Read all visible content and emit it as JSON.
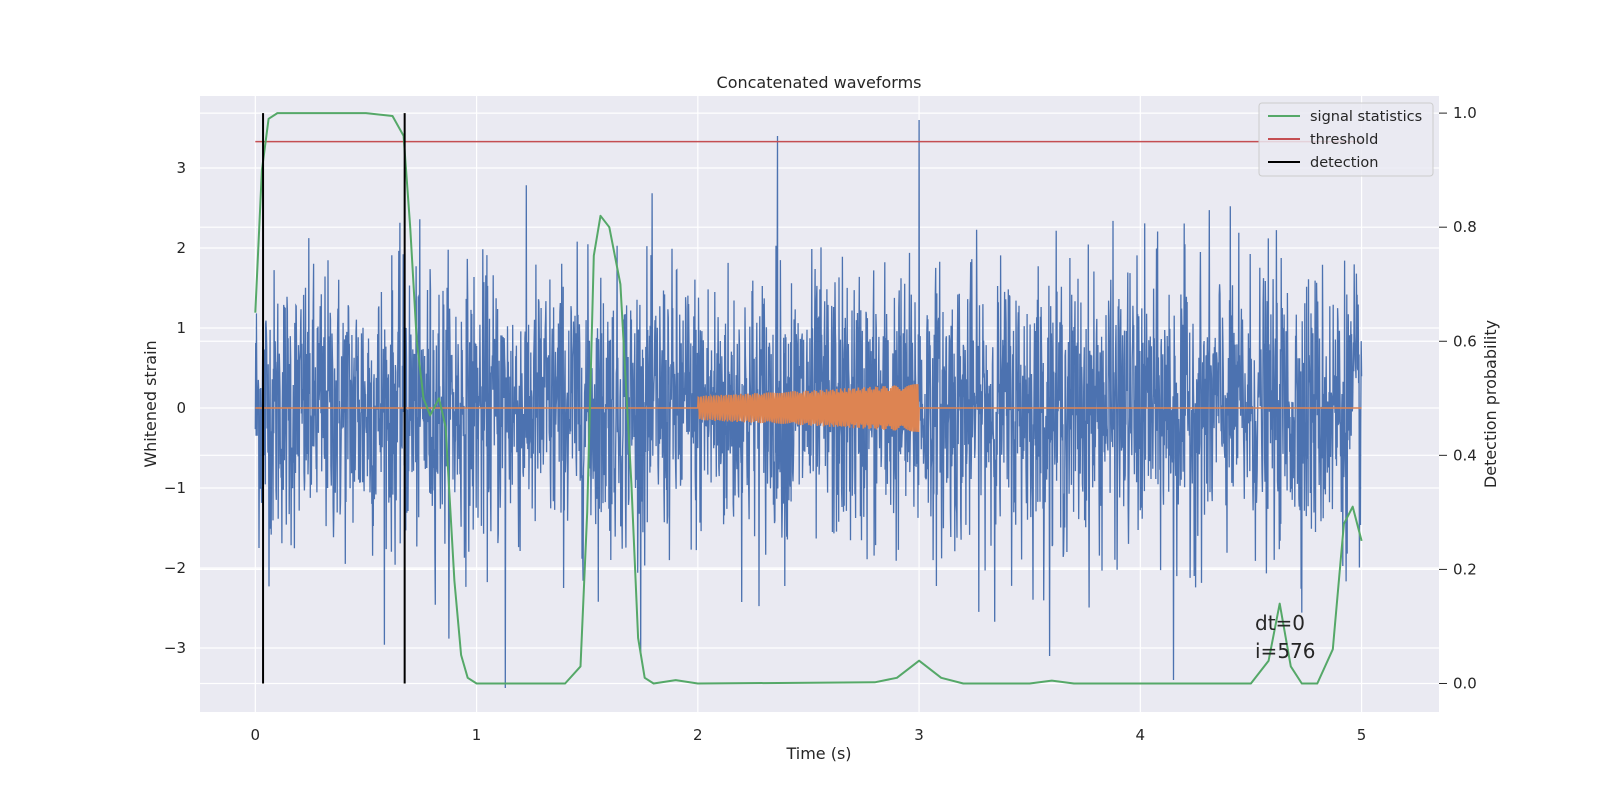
{
  "chart_data": {
    "type": "line",
    "title": "Concatenated waveforms",
    "xlabel": "Time (s)",
    "ylabel": "Whitened strain",
    "ylabel_right": "Detection probability",
    "xlim": [
      -0.25,
      5.35
    ],
    "ylim": [
      -3.8,
      3.9
    ],
    "ylim_right": [
      -0.05,
      1.03
    ],
    "x_ticks": [
      0,
      1,
      2,
      3,
      4,
      5
    ],
    "y_ticks": [
      -3,
      -2,
      -1,
      0,
      1,
      2,
      3
    ],
    "y_ticks_right": [
      0.0,
      0.2,
      0.4,
      0.6,
      0.8,
      1.0
    ],
    "x_tick_labels": [
      "0",
      "1",
      "2",
      "3",
      "4",
      "5"
    ],
    "y_tick_labels": [
      "−3",
      "−2",
      "−1",
      "0",
      "1",
      "2",
      "3"
    ],
    "y_tick_labels_right": [
      "0.0",
      "0.2",
      "0.4",
      "0.6",
      "0.8",
      "1.0"
    ],
    "grid": true,
    "legend": {
      "position": "top-right",
      "entries": [
        "signal statistics",
        "threshold",
        "detection"
      ]
    },
    "annotations": [
      "dt=0",
      "i=576"
    ],
    "series": [
      {
        "name": "whitened strain (noise)",
        "axis": "left",
        "color": "#4c72b0",
        "x_range": [
          0,
          5
        ],
        "envelope_typical": 1.0,
        "envelope_peak": 3.5,
        "notable_peaks": [
          [
            2.36,
            3.4
          ],
          [
            3.0,
            3.6
          ],
          [
            1.13,
            -3.5
          ],
          [
            4.15,
            -3.4
          ]
        ]
      },
      {
        "name": "injected waveform",
        "axis": "left",
        "color": "#dd8452",
        "x": [
          0,
          2.0,
          2.5,
          3.0,
          3.001,
          5
        ],
        "amplitude": [
          0,
          0.15,
          0.22,
          0.3,
          0,
          0
        ]
      },
      {
        "name": "signal statistics",
        "axis": "right",
        "color": "#55a868",
        "x": [
          0.0,
          0.03,
          0.06,
          0.1,
          0.5,
          0.62,
          0.67,
          0.7,
          0.73,
          0.76,
          0.79,
          0.83,
          0.86,
          0.9,
          0.93,
          0.96,
          1.0,
          1.4,
          1.47,
          1.5,
          1.53,
          1.56,
          1.6,
          1.65,
          1.7,
          1.73,
          1.76,
          1.8,
          1.9,
          2.0,
          2.8,
          2.9,
          3.0,
          3.1,
          3.2,
          3.5,
          3.6,
          3.7,
          4.5,
          4.58,
          4.63,
          4.68,
          4.73,
          4.8,
          4.87,
          4.92,
          4.96,
          5.0
        ],
        "values": [
          0.65,
          0.9,
          0.99,
          1.0,
          1.0,
          0.995,
          0.96,
          0.8,
          0.6,
          0.5,
          0.47,
          0.5,
          0.45,
          0.18,
          0.05,
          0.01,
          0.0,
          0.0,
          0.03,
          0.3,
          0.75,
          0.82,
          0.8,
          0.7,
          0.35,
          0.08,
          0.01,
          0.0,
          0.006,
          0.0,
          0.002,
          0.01,
          0.04,
          0.01,
          0.0,
          0.0,
          0.005,
          0.0,
          0.0,
          0.04,
          0.14,
          0.03,
          0.0,
          0.0,
          0.06,
          0.28,
          0.31,
          0.25
        ]
      },
      {
        "name": "threshold",
        "axis": "right",
        "color": "#c44e52",
        "x": [
          0,
          5
        ],
        "values": [
          0.95,
          0.95
        ]
      },
      {
        "name": "detection",
        "axis": "right",
        "color": "#000000",
        "x_positions": [
          0.035,
          0.675
        ],
        "y_span": [
          0.0,
          1.0
        ]
      }
    ]
  }
}
